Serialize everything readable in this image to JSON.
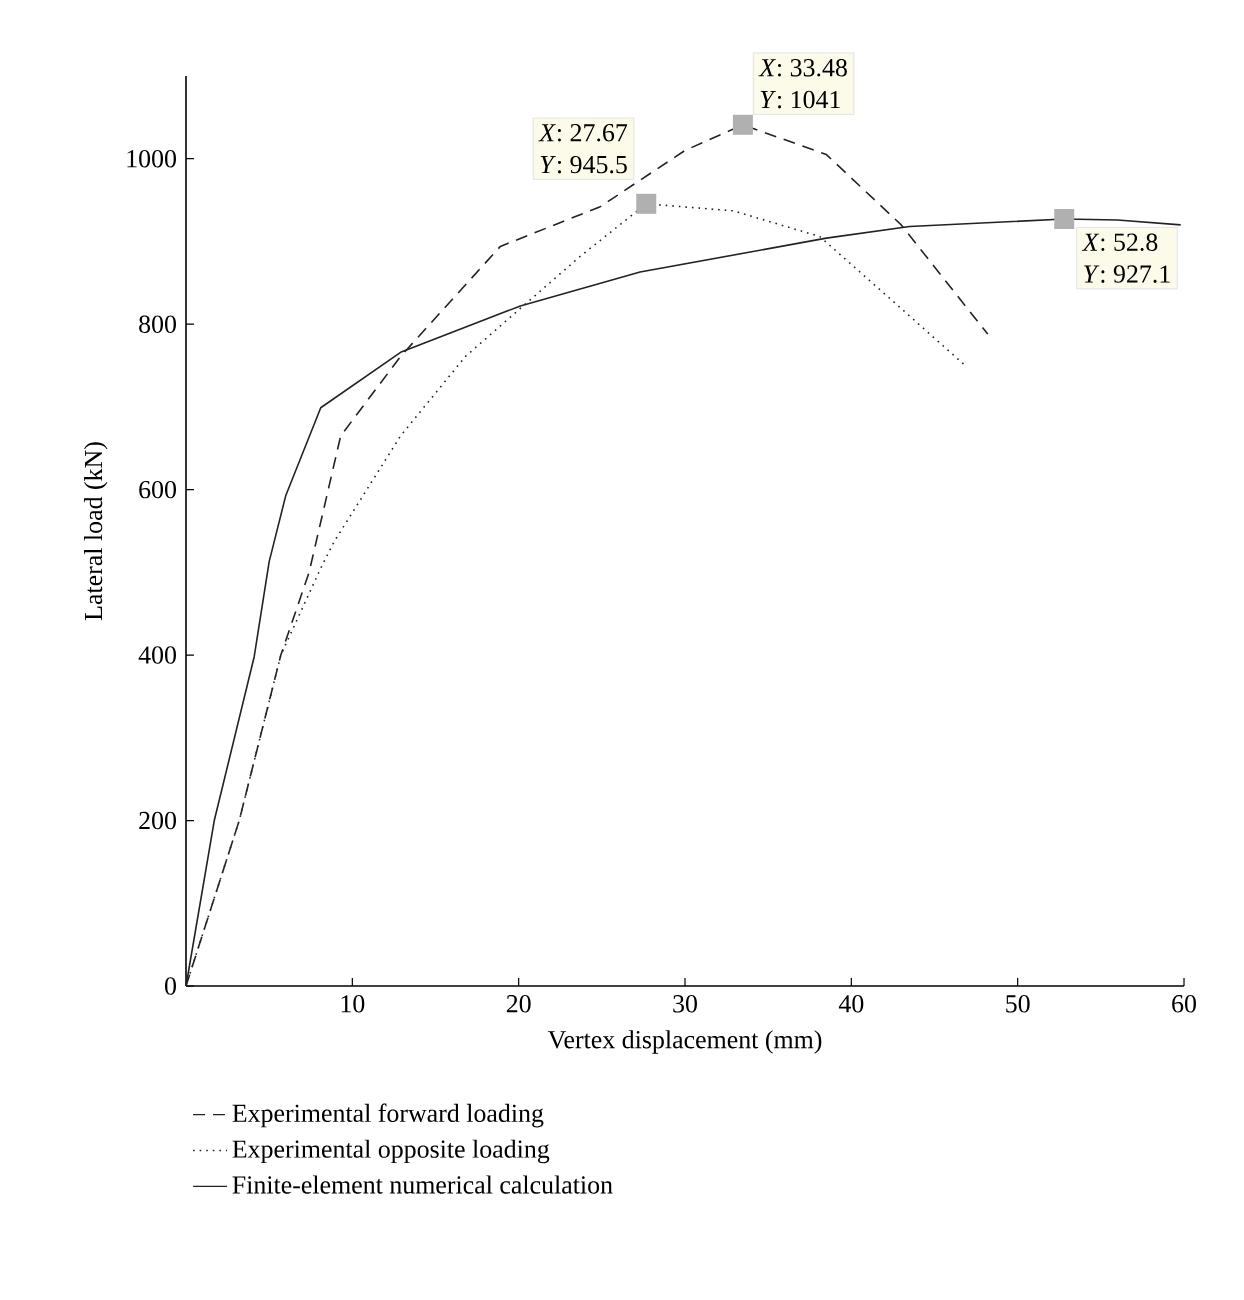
{
  "chart_data": {
    "type": "line",
    "xlabel": "Vertex displacement (mm)",
    "ylabel": "Lateral load (kN)",
    "xlim": [
      0,
      60
    ],
    "xticks": [
      10,
      20,
      30,
      40,
      50,
      60
    ],
    "ylim": [
      0,
      1100
    ],
    "yticks": [
      0,
      200,
      400,
      600,
      800,
      1000
    ],
    "legend": "bottom",
    "grid": false,
    "series": [
      {
        "name": "Experimental forward loading",
        "color": "#222222",
        "line_style": "dashed",
        "x": [
          0,
          3.2,
          5.7,
          7.4,
          9.3,
          12.9,
          18.9,
          24.9,
          30,
          33.48,
          38.5,
          43,
          48.2
        ],
        "values": [
          0,
          200,
          400,
          500,
          665,
          761,
          894,
          942,
          1010,
          1041,
          1005,
          920,
          788
        ]
      },
      {
        "name": "Experimental opposite loading",
        "color": "#222222",
        "line_style": "dotted",
        "x": [
          0,
          3.2,
          5.7,
          8.1,
          8.9,
          12.9,
          16.8,
          20.1,
          23.7,
          27.67,
          32.9,
          38.1,
          42.6,
          46.9
        ],
        "values": [
          0,
          200,
          400,
          505,
          537,
          665,
          761,
          819,
          882,
          945.5,
          937,
          906,
          826,
          749
        ]
      },
      {
        "name": "Finite-element numerical calculation",
        "color": "#222222",
        "line_style": "solid",
        "x": [
          0,
          1.7,
          4.1,
          5.0,
          6.0,
          8.1,
          12.9,
          20.1,
          27.3,
          38.5,
          43.5,
          52.8,
          56,
          59.8
        ],
        "values": [
          0,
          200,
          398,
          513,
          593,
          699,
          766,
          822,
          863,
          904,
          918,
          927.1,
          926,
          920
        ]
      }
    ],
    "annotations": [
      {
        "text": "*X*: 27.67",
        "x": 27.67,
        "y": 945.5
      },
      {
        "text": "*Y*: 945.5",
        "x": 27.67,
        "y": 945.5
      },
      {
        "text": "*X*: 33.48",
        "x": 33.48,
        "y": 1041
      },
      {
        "text": "*Y*: 1041",
        "x": 33.48,
        "y": 1041
      },
      {
        "text": "*X*: 52.8",
        "x": 52.8,
        "y": 927.1
      },
      {
        "text": "*Y*: 927.1",
        "x": 52.8,
        "y": 927.1
      }
    ]
  }
}
